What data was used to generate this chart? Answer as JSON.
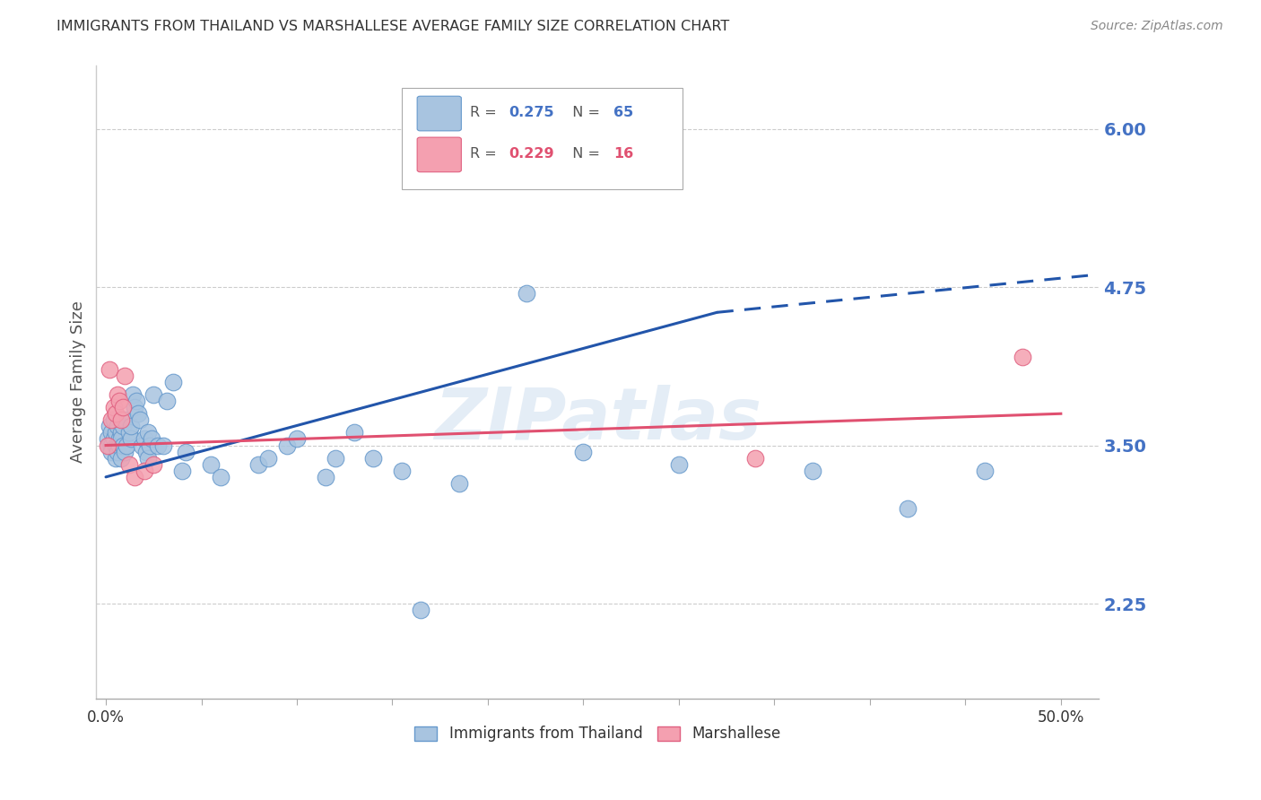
{
  "title": "IMMIGRANTS FROM THAILAND VS MARSHALLESE AVERAGE FAMILY SIZE CORRELATION CHART",
  "source": "Source: ZipAtlas.com",
  "ylabel": "Average Family Size",
  "xlabel_ticks": [
    "0.0%",
    "",
    "",
    "",
    "",
    "",
    "",
    "",
    "",
    "50.0%"
  ],
  "xlabel_vals": [
    0.0,
    0.05,
    0.1,
    0.15,
    0.2,
    0.25,
    0.3,
    0.35,
    0.4,
    0.5
  ],
  "yticks": [
    2.25,
    3.5,
    4.75,
    6.0
  ],
  "ylim": [
    1.5,
    6.5
  ],
  "xlim": [
    -0.005,
    0.52
  ],
  "thailand_x": [
    0.001,
    0.002,
    0.002,
    0.003,
    0.003,
    0.003,
    0.004,
    0.004,
    0.005,
    0.005,
    0.005,
    0.006,
    0.006,
    0.006,
    0.007,
    0.007,
    0.008,
    0.008,
    0.008,
    0.009,
    0.009,
    0.01,
    0.01,
    0.011,
    0.012,
    0.013,
    0.013,
    0.014,
    0.015,
    0.016,
    0.017,
    0.018,
    0.019,
    0.02,
    0.021,
    0.022,
    0.022,
    0.023,
    0.024,
    0.025,
    0.027,
    0.03,
    0.032,
    0.055,
    0.06,
    0.08,
    0.095,
    0.1,
    0.115,
    0.13,
    0.155,
    0.165,
    0.22,
    0.14,
    0.185,
    0.25,
    0.3,
    0.37,
    0.12,
    0.035,
    0.04,
    0.042,
    0.085,
    0.42,
    0.46
  ],
  "thailand_y": [
    3.55,
    3.65,
    3.5,
    3.6,
    3.5,
    3.45,
    3.55,
    3.7,
    3.5,
    3.6,
    3.4,
    3.5,
    3.45,
    3.65,
    3.55,
    3.5,
    3.6,
    3.4,
    3.55,
    3.5,
    3.65,
    3.7,
    3.45,
    3.5,
    3.6,
    3.55,
    3.65,
    3.9,
    3.8,
    3.85,
    3.75,
    3.7,
    3.5,
    3.55,
    3.45,
    3.4,
    3.6,
    3.5,
    3.55,
    3.9,
    3.5,
    3.5,
    3.85,
    3.35,
    3.25,
    3.35,
    3.5,
    3.55,
    3.25,
    3.6,
    3.3,
    2.2,
    4.7,
    3.4,
    3.2,
    3.45,
    3.35,
    3.3,
    3.4,
    4.0,
    3.3,
    3.45,
    3.4,
    3.0,
    3.3
  ],
  "marshallese_x": [
    0.001,
    0.002,
    0.003,
    0.004,
    0.005,
    0.006,
    0.007,
    0.008,
    0.009,
    0.01,
    0.012,
    0.015,
    0.02,
    0.025,
    0.34,
    0.48
  ],
  "marshallese_y": [
    3.5,
    4.1,
    3.7,
    3.8,
    3.75,
    3.9,
    3.85,
    3.7,
    3.8,
    4.05,
    3.35,
    3.25,
    3.3,
    3.35,
    3.4,
    4.2
  ],
  "thailand_line_solid": {
    "x0": 0.0,
    "y0": 3.25,
    "x1": 0.32,
    "y1": 4.55
  },
  "thailand_line_dashed": {
    "x0": 0.32,
    "y0": 4.55,
    "x1": 0.52,
    "y1": 4.85
  },
  "marshallese_line": {
    "x0": 0.0,
    "y0": 3.5,
    "x1": 0.5,
    "y1": 3.75
  },
  "background_color": "#ffffff",
  "grid_color": "#cccccc",
  "title_color": "#333333",
  "axis_color": "#4472c4",
  "thailand_dot_color": "#a8c4e0",
  "thailand_dot_edge": "#6699cc",
  "marshallese_dot_color": "#f4a0b0",
  "marshallese_dot_edge": "#e06080",
  "thailand_line_color": "#2255aa",
  "marshallese_line_color": "#e05070",
  "watermark": "ZIPatlas",
  "legend_r1_label": "R = 0.275",
  "legend_n1_label": "N = 65",
  "legend_r2_label": "R = 0.229",
  "legend_n2_label": "N = 16",
  "legend_bottom_1": "Immigrants from Thailand",
  "legend_bottom_2": "Marshallese"
}
